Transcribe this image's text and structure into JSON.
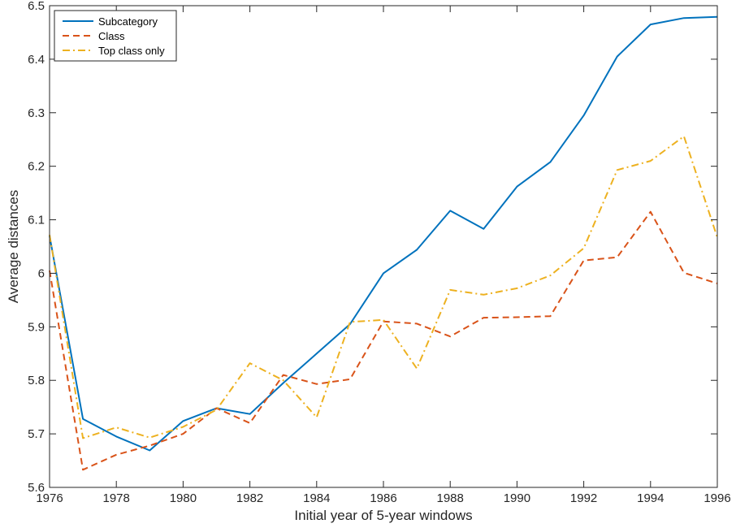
{
  "chart_data": {
    "type": "line",
    "title": "",
    "xlabel": "Initial year of 5-year windows",
    "ylabel": "Average distances",
    "xlim": [
      1976,
      1996
    ],
    "ylim": [
      5.6,
      6.5
    ],
    "xticks": [
      "1976",
      "1978",
      "1980",
      "1982",
      "1984",
      "1986",
      "1988",
      "1990",
      "1992",
      "1994",
      "1996"
    ],
    "yticks": [
      "5.6",
      "5.7",
      "5.8",
      "5.9",
      "6",
      "6.1",
      "6.2",
      "6.3",
      "6.4",
      "6.5"
    ],
    "grid": false,
    "legend_position": "top-left",
    "x": [
      1976,
      1977,
      1978,
      1979,
      1980,
      1981,
      1982,
      1983,
      1984,
      1985,
      1986,
      1987,
      1988,
      1989,
      1990,
      1991,
      1992,
      1993,
      1994,
      1995,
      1996
    ],
    "series": [
      {
        "name": "Subcategory",
        "color": "#0072BD",
        "dash": "solid",
        "values": [
          6.07,
          5.728,
          5.695,
          5.669,
          5.724,
          5.748,
          5.737,
          5.795,
          5.85,
          5.905,
          6.0,
          6.044,
          6.117,
          6.083,
          6.162,
          6.208,
          6.295,
          6.405,
          6.465,
          6.477,
          6.479
        ]
      },
      {
        "name": "Class",
        "color": "#D95319",
        "dash": "dashed",
        "values": [
          6.005,
          5.633,
          5.661,
          5.678,
          5.7,
          5.748,
          5.72,
          5.81,
          5.793,
          5.802,
          5.91,
          5.906,
          5.882,
          5.917,
          5.918,
          5.92,
          6.024,
          6.03,
          6.115,
          6.001,
          5.981
        ]
      },
      {
        "name": "Top class only",
        "color": "#EDB120",
        "dash": "dashdot",
        "values": [
          6.072,
          5.692,
          5.712,
          5.693,
          5.713,
          5.745,
          5.832,
          5.8,
          5.731,
          5.909,
          5.913,
          5.822,
          5.969,
          5.96,
          5.972,
          5.996,
          6.047,
          6.193,
          6.21,
          6.256,
          6.067
        ]
      }
    ]
  }
}
